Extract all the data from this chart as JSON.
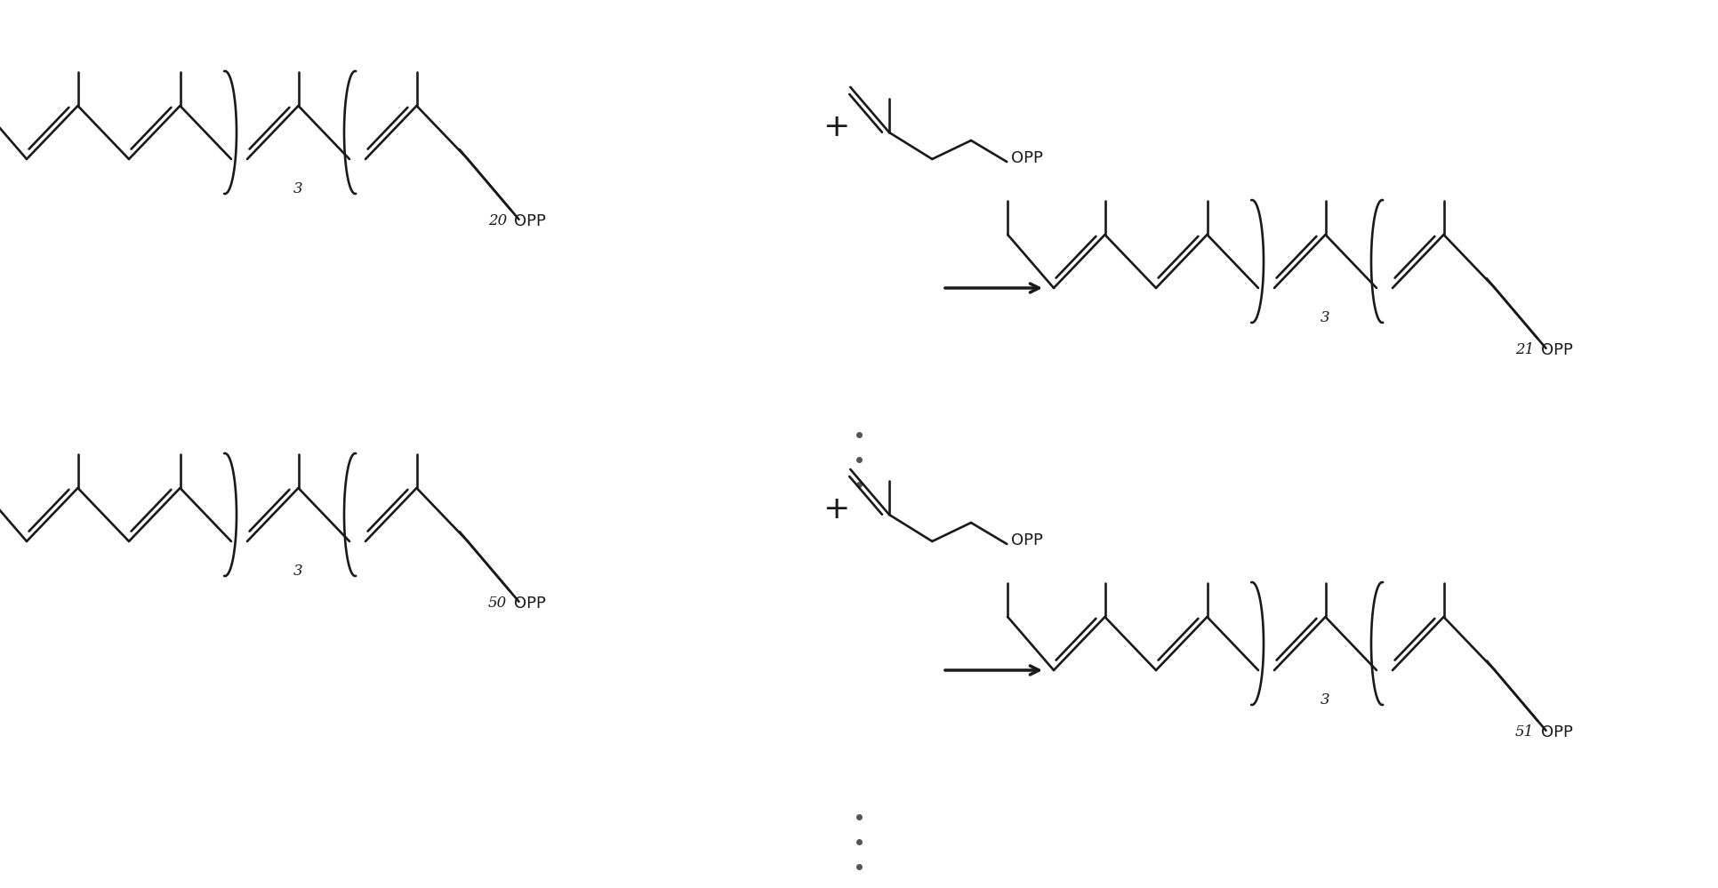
{
  "background": "#ffffff",
  "line_color": "#1a1a1a",
  "lw": 1.9,
  "fig_width": 19.32,
  "fig_height": 9.99,
  "dpi": 100,
  "rxn1": {
    "left_sub_bracket": "3",
    "left_sub_end": "20",
    "right_sub_bracket": "3",
    "right_sub_end": "21"
  },
  "rxn2": {
    "left_sub_bracket": "3",
    "left_sub_end": "50",
    "right_sub_bracket": "3",
    "right_sub_end": "51"
  },
  "font_size_label": 13,
  "font_size_sub": 12
}
